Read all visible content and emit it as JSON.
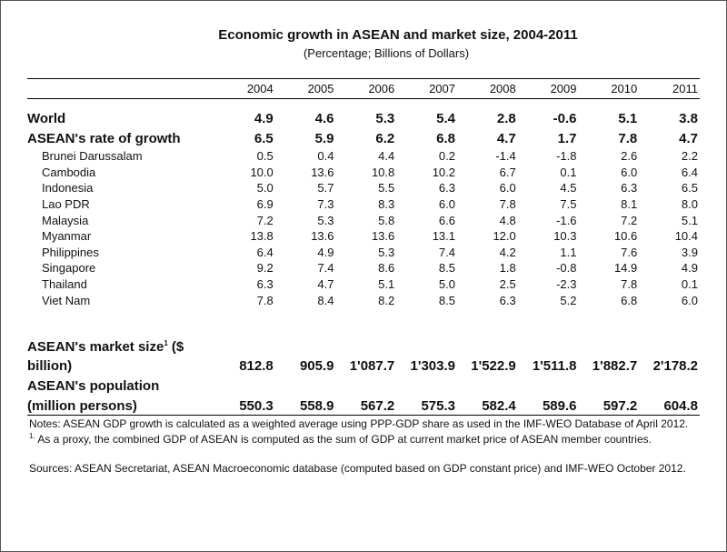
{
  "title": "Economic growth in ASEAN and market size, 2004-2011",
  "subtitle": "(Percentage; Billions of Dollars)",
  "chart_data": {
    "type": "table",
    "columns": [
      "2004",
      "2005",
      "2006",
      "2007",
      "2008",
      "2009",
      "2010",
      "2011"
    ],
    "headline_rows": [
      {
        "label": "World",
        "values": [
          "4.9",
          "4.6",
          "5.3",
          "5.4",
          "2.8",
          "-0.6",
          "5.1",
          "3.8"
        ]
      },
      {
        "label": "ASEAN's rate of growth",
        "values": [
          "6.5",
          "5.9",
          "6.2",
          "6.8",
          "4.7",
          "1.7",
          "7.8",
          "4.7"
        ]
      }
    ],
    "country_rows": [
      {
        "label": "Brunei Darussalam",
        "values": [
          "0.5",
          "0.4",
          "4.4",
          "0.2",
          "-1.4",
          "-1.8",
          "2.6",
          "2.2"
        ]
      },
      {
        "label": "Cambodia",
        "values": [
          "10.0",
          "13.6",
          "10.8",
          "10.2",
          "6.7",
          "0.1",
          "6.0",
          "6.4"
        ]
      },
      {
        "label": "Indonesia",
        "values": [
          "5.0",
          "5.7",
          "5.5",
          "6.3",
          "6.0",
          "4.5",
          "6.3",
          "6.5"
        ]
      },
      {
        "label": "Lao PDR",
        "values": [
          "6.9",
          "7.3",
          "8.3",
          "6.0",
          "7.8",
          "7.5",
          "8.1",
          "8.0"
        ]
      },
      {
        "label": "Malaysia",
        "values": [
          "7.2",
          "5.3",
          "5.8",
          "6.6",
          "4.8",
          "-1.6",
          "7.2",
          "5.1"
        ]
      },
      {
        "label": "Myanmar",
        "values": [
          "13.8",
          "13.6",
          "13.6",
          "13.1",
          "12.0",
          "10.3",
          "10.6",
          "10.4"
        ]
      },
      {
        "label": "Philippines",
        "values": [
          "6.4",
          "4.9",
          "5.3",
          "7.4",
          "4.2",
          "1.1",
          "7.6",
          "3.9"
        ]
      },
      {
        "label": "Singapore",
        "values": [
          "9.2",
          "7.4",
          "8.6",
          "8.5",
          "1.8",
          "-0.8",
          "14.9",
          "4.9"
        ]
      },
      {
        "label": "Thailand",
        "values": [
          "6.3",
          "4.7",
          "5.1",
          "5.0",
          "2.5",
          "-2.3",
          "7.8",
          "0.1"
        ]
      },
      {
        "label": "Viet Nam",
        "values": [
          "7.8",
          "8.4",
          "8.2",
          "8.5",
          "6.3",
          "5.2",
          "6.8",
          "6.0"
        ]
      }
    ],
    "market_size": {
      "label_line1": "ASEAN's market size",
      "footnote_mark": "1",
      "label_line1_suffix": " ($",
      "label_line2": "billion)",
      "values": [
        "812.8",
        "905.9",
        "1'087.7",
        "1'303.9",
        "1'522.9",
        "1'511.8",
        "1'882.7",
        "2'178.2"
      ]
    },
    "population": {
      "label_line1": "ASEAN's population",
      "label_line2": "(million persons)",
      "values": [
        "550.3",
        "558.9",
        "567.2",
        "575.3",
        "582.4",
        "589.6",
        "597.2",
        "604.8"
      ]
    }
  },
  "notes": {
    "note1": "Notes: ASEAN GDP growth is calculated as a weighted average using PPP-GDP share as used in the IMF-WEO Database of April 2012.",
    "note2_mark": "1.",
    "note2": " As a proxy, the combined GDP of ASEAN is computed as the sum of GDP at current market price of ASEAN member countries.",
    "sources": "Sources: ASEAN Secretariat, ASEAN Macroeconomic database (computed based on GDP constant price) and IMF-WEO October 2012."
  }
}
